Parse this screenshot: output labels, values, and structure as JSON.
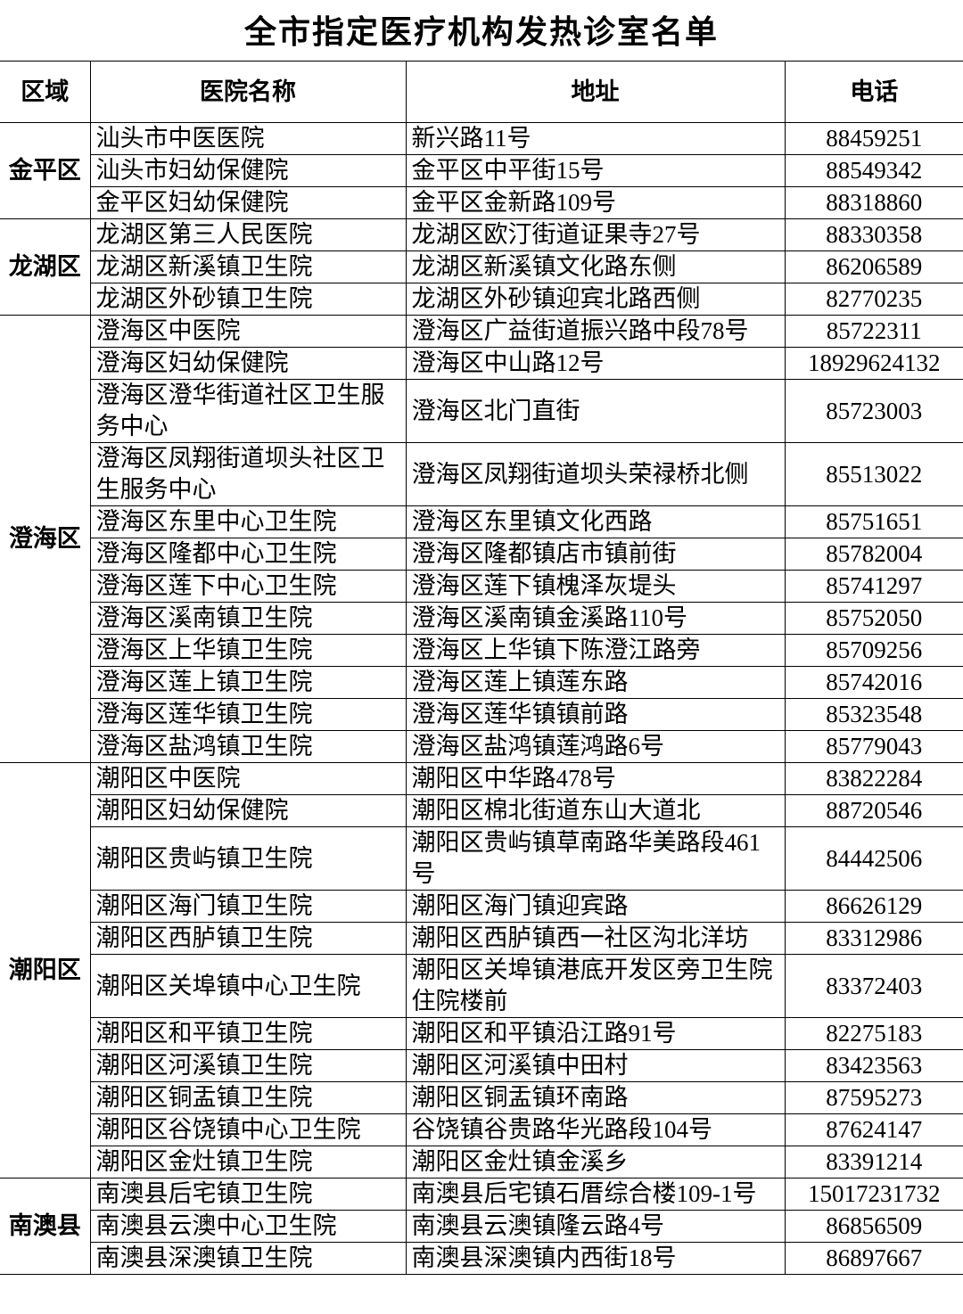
{
  "title": "全市指定医疗机构发热诊室名单",
  "table": {
    "headers": [
      "区域",
      "医院名称",
      "地址",
      "电话"
    ],
    "groups": [
      {
        "region": "金平区",
        "rows": [
          [
            "汕头市中医医院",
            "新兴路11号",
            "88459251"
          ],
          [
            "汕头市妇幼保健院",
            "金平区中平街15号",
            "88549342"
          ],
          [
            "金平区妇幼保健院",
            "金平区金新路109号",
            "88318860"
          ]
        ]
      },
      {
        "region": "龙湖区",
        "rows": [
          [
            "龙湖区第三人民医院",
            "龙湖区欧汀街道证果寺27号",
            "88330358"
          ],
          [
            "龙湖区新溪镇卫生院",
            "龙湖区新溪镇文化路东侧",
            "86206589"
          ],
          [
            "龙湖区外砂镇卫生院",
            "龙湖区外砂镇迎宾北路西侧",
            "82770235"
          ]
        ]
      },
      {
        "region": "澄海区",
        "rows": [
          [
            "澄海区中医院",
            "澄海区广益街道振兴路中段78号",
            "85722311"
          ],
          [
            "澄海区妇幼保健院",
            "澄海区中山路12号",
            "18929624132"
          ],
          [
            "澄海区澄华街道社区卫生服务中心",
            "澄海区北门直街",
            "85723003"
          ],
          [
            "澄海区凤翔街道坝头社区卫生服务中心",
            "澄海区凤翔街道坝头荣禄桥北侧",
            "85513022"
          ],
          [
            "澄海区东里中心卫生院",
            "澄海区东里镇文化西路",
            "85751651"
          ],
          [
            "澄海区隆都中心卫生院",
            "澄海区隆都镇店市镇前街",
            "85782004"
          ],
          [
            "澄海区莲下中心卫生院",
            "澄海区莲下镇槐泽灰堤头",
            "85741297"
          ],
          [
            "澄海区溪南镇卫生院",
            "澄海区溪南镇金溪路110号",
            "85752050"
          ],
          [
            "澄海区上华镇卫生院",
            "澄海区上华镇下陈澄江路旁",
            "85709256"
          ],
          [
            "澄海区莲上镇卫生院",
            "澄海区莲上镇莲东路",
            "85742016"
          ],
          [
            "澄海区莲华镇卫生院",
            "澄海区莲华镇镇前路",
            "85323548"
          ],
          [
            "澄海区盐鸿镇卫生院",
            "澄海区盐鸿镇莲鸿路6号",
            "85779043"
          ]
        ]
      },
      {
        "region": "潮阳区",
        "rows": [
          [
            "潮阳区中医院",
            "潮阳区中华路478号",
            "83822284"
          ],
          [
            "潮阳区妇幼保健院",
            "潮阳区棉北街道东山大道北",
            "88720546"
          ],
          [
            "潮阳区贵屿镇卫生院",
            "潮阳区贵屿镇草南路华美路段461号",
            "84442506"
          ],
          [
            "潮阳区海门镇卫生院",
            "潮阳区海门镇迎宾路",
            "86626129"
          ],
          [
            "潮阳区西胪镇卫生院",
            "潮阳区西胪镇西一社区沟北洋坊",
            "83312986"
          ],
          [
            "潮阳区关埠镇中心卫生院",
            "潮阳区关埠镇港底开发区旁卫生院住院楼前",
            "83372403"
          ],
          [
            "潮阳区和平镇卫生院",
            "潮阳区和平镇沿江路91号",
            "82275183"
          ],
          [
            "潮阳区河溪镇卫生院",
            "潮阳区河溪镇中田村",
            "83423563"
          ],
          [
            "潮阳区铜盂镇卫生院",
            "潮阳区铜盂镇环南路",
            "87595273"
          ],
          [
            "潮阳区谷饶镇中心卫生院",
            "谷饶镇谷贵路华光路段104号",
            "87624147"
          ],
          [
            "潮阳区金灶镇卫生院",
            "潮阳区金灶镇金溪乡",
            "83391214"
          ]
        ]
      },
      {
        "region": "南澳县",
        "rows": [
          [
            "南澳县后宅镇卫生院",
            "南澳县后宅镇石厝综合楼109-1号",
            "15017231732"
          ],
          [
            "南澳县云澳中心卫生院",
            "南澳县云澳镇隆云路4号",
            "86856509"
          ],
          [
            "南澳县深澳镇卫生院",
            "南澳县深澳镇内西街18号",
            "86897667"
          ]
        ]
      }
    ]
  }
}
